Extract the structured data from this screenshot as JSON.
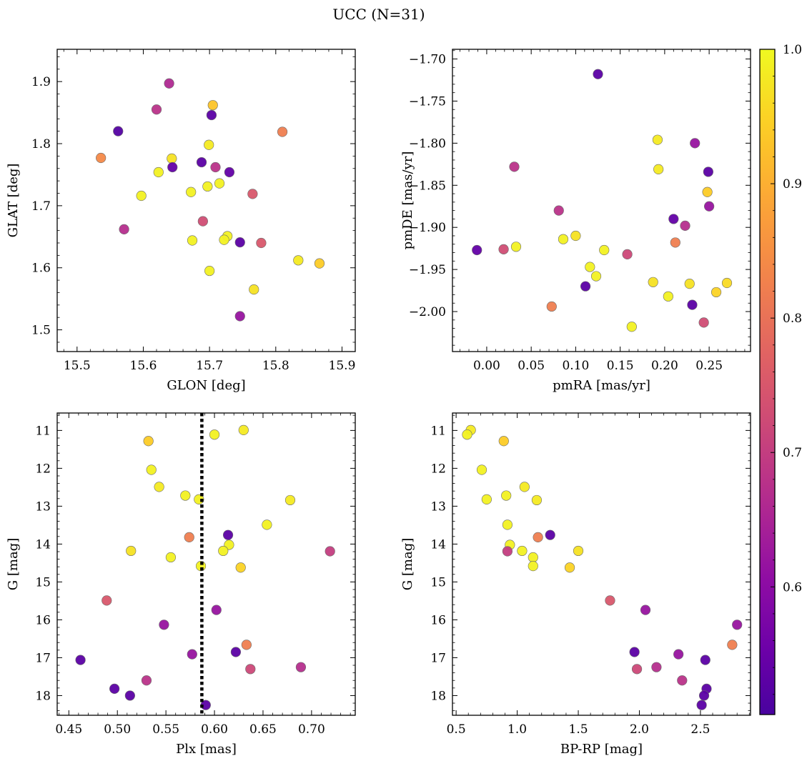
{
  "figure": {
    "title": "UCC (N=31)"
  },
  "colorbar": {
    "ticks": [
      0.6,
      0.7,
      0.8,
      0.9,
      1.0
    ],
    "tick_labels": [
      "0.6",
      "0.7",
      "0.8",
      "0.9",
      "1.0"
    ],
    "range": [
      0.505,
      1.0
    ]
  },
  "chart_data": [
    {
      "type": "scatter",
      "xlabel": "GLON [deg]",
      "ylabel": "GLAT [deg]",
      "xlim": [
        15.47,
        15.92
      ],
      "ylim": [
        1.465,
        1.952
      ],
      "xticks": [
        15.5,
        15.6,
        15.7,
        15.8,
        15.9
      ],
      "xtick_labels": [
        "15.5",
        "15.6",
        "15.7",
        "15.8",
        "15.9"
      ],
      "yticks": [
        1.5,
        1.6,
        1.7,
        1.8,
        1.9
      ],
      "ytick_labels": [
        "1.5",
        "1.6",
        "1.7",
        "1.8",
        "1.9"
      ],
      "y_inverted": false,
      "points": [
        {
          "x": 15.639,
          "y": 1.897,
          "c": 0.66
        },
        {
          "x": 15.705,
          "y": 1.862,
          "c": 0.93
        },
        {
          "x": 15.62,
          "y": 1.855,
          "c": 0.68
        },
        {
          "x": 15.703,
          "y": 1.846,
          "c": 0.53
        },
        {
          "x": 15.562,
          "y": 1.82,
          "c": 0.52
        },
        {
          "x": 15.81,
          "y": 1.819,
          "c": 0.82
        },
        {
          "x": 15.699,
          "y": 1.798,
          "c": 0.98
        },
        {
          "x": 15.536,
          "y": 1.777,
          "c": 0.84
        },
        {
          "x": 15.643,
          "y": 1.776,
          "c": 0.97
        },
        {
          "x": 15.688,
          "y": 1.77,
          "c": 0.53
        },
        {
          "x": 15.709,
          "y": 1.762,
          "c": 0.68
        },
        {
          "x": 15.644,
          "y": 1.762,
          "c": 0.54
        },
        {
          "x": 15.623,
          "y": 1.754,
          "c": 0.99
        },
        {
          "x": 15.73,
          "y": 1.754,
          "c": 0.54
        },
        {
          "x": 15.715,
          "y": 1.736,
          "c": 0.99
        },
        {
          "x": 15.697,
          "y": 1.731,
          "c": 0.99
        },
        {
          "x": 15.672,
          "y": 1.722,
          "c": 0.99
        },
        {
          "x": 15.765,
          "y": 1.719,
          "c": 0.75
        },
        {
          "x": 15.597,
          "y": 1.716,
          "c": 0.99
        },
        {
          "x": 15.69,
          "y": 1.675,
          "c": 0.73
        },
        {
          "x": 15.571,
          "y": 1.662,
          "c": 0.67
        },
        {
          "x": 15.727,
          "y": 1.651,
          "c": 0.99
        },
        {
          "x": 15.722,
          "y": 1.645,
          "c": 0.99
        },
        {
          "x": 15.674,
          "y": 1.644,
          "c": 0.99
        },
        {
          "x": 15.746,
          "y": 1.641,
          "c": 0.53
        },
        {
          "x": 15.778,
          "y": 1.64,
          "c": 0.75
        },
        {
          "x": 15.834,
          "y": 1.612,
          "c": 0.98
        },
        {
          "x": 15.866,
          "y": 1.607,
          "c": 0.94
        },
        {
          "x": 15.7,
          "y": 1.595,
          "c": 0.99
        },
        {
          "x": 15.767,
          "y": 1.565,
          "c": 0.97
        },
        {
          "x": 15.746,
          "y": 1.522,
          "c": 0.62
        }
      ]
    },
    {
      "type": "scatter",
      "xlabel": "pmRA [mas/yr]",
      "ylabel": "pmDE [mas/yr]",
      "xlim": [
        -0.0385,
        0.2965
      ],
      "ylim": [
        -2.0475,
        -1.6885
      ],
      "xticks": [
        0.0,
        0.05,
        0.1,
        0.15,
        0.2,
        0.25
      ],
      "xtick_labels": [
        "0.00",
        "0.05",
        "0.10",
        "0.15",
        "0.20",
        "0.25"
      ],
      "yticks": [
        -2.0,
        -1.95,
        -1.9,
        -1.85,
        -1.8,
        -1.75,
        -1.7
      ],
      "ytick_labels": [
        "−2.00",
        "−1.95",
        "−1.90",
        "−1.85",
        "−1.80",
        "−1.75",
        "−1.70"
      ],
      "y_inverted": false,
      "points": [
        {
          "x": 0.125,
          "y": -1.718,
          "c": 0.53
        },
        {
          "x": 0.192,
          "y": -1.796,
          "c": 0.98
        },
        {
          "x": 0.234,
          "y": -1.8,
          "c": 0.62
        },
        {
          "x": 0.031,
          "y": -1.828,
          "c": 0.68
        },
        {
          "x": 0.193,
          "y": -1.831,
          "c": 0.98
        },
        {
          "x": 0.249,
          "y": -1.834,
          "c": 0.53
        },
        {
          "x": 0.248,
          "y": -1.858,
          "c": 0.94
        },
        {
          "x": 0.25,
          "y": -1.875,
          "c": 0.62
        },
        {
          "x": 0.081,
          "y": -1.88,
          "c": 0.68
        },
        {
          "x": 0.21,
          "y": -1.89,
          "c": 0.54
        },
        {
          "x": 0.223,
          "y": -1.898,
          "c": 0.67
        },
        {
          "x": 0.1,
          "y": -1.91,
          "c": 0.97
        },
        {
          "x": 0.086,
          "y": -1.914,
          "c": 0.99
        },
        {
          "x": 0.212,
          "y": -1.918,
          "c": 0.82
        },
        {
          "x": 0.033,
          "y": -1.923,
          "c": 0.99
        },
        {
          "x": -0.011,
          "y": -1.927,
          "c": 0.54
        },
        {
          "x": 0.019,
          "y": -1.926,
          "c": 0.73
        },
        {
          "x": 0.132,
          "y": -1.927,
          "c": 0.99
        },
        {
          "x": 0.158,
          "y": -1.932,
          "c": 0.72
        },
        {
          "x": 0.116,
          "y": -1.947,
          "c": 0.99
        },
        {
          "x": 0.123,
          "y": -1.958,
          "c": 0.99
        },
        {
          "x": 0.187,
          "y": -1.965,
          "c": 0.97
        },
        {
          "x": 0.228,
          "y": -1.967,
          "c": 0.97
        },
        {
          "x": 0.27,
          "y": -1.966,
          "c": 0.96
        },
        {
          "x": 0.111,
          "y": -1.97,
          "c": 0.53
        },
        {
          "x": 0.258,
          "y": -1.977,
          "c": 0.95
        },
        {
          "x": 0.204,
          "y": -1.982,
          "c": 0.99
        },
        {
          "x": 0.231,
          "y": -1.992,
          "c": 0.53
        },
        {
          "x": 0.073,
          "y": -1.994,
          "c": 0.82
        },
        {
          "x": 0.244,
          "y": -2.013,
          "c": 0.73
        },
        {
          "x": 0.163,
          "y": -2.018,
          "c": 0.99
        }
      ]
    },
    {
      "type": "scatter",
      "xlabel": "Plx [mas]",
      "ylabel": "G [mag]",
      "xlim": [
        0.438,
        0.745
      ],
      "ylim": [
        18.52,
        10.54
      ],
      "xticks": [
        0.45,
        0.5,
        0.55,
        0.6,
        0.65,
        0.7
      ],
      "xtick_labels": [
        "0.45",
        "0.50",
        "0.55",
        "0.60",
        "0.65",
        "0.70"
      ],
      "yticks": [
        11,
        12,
        13,
        14,
        15,
        16,
        17,
        18
      ],
      "ytick_labels": [
        "11",
        "12",
        "13",
        "14",
        "15",
        "16",
        "17",
        "18"
      ],
      "y_inverted": true,
      "vline": {
        "x": 0.587,
        "style": "dotted"
      },
      "points": [
        {
          "x": 0.63,
          "y": 10.99,
          "c": 0.98
        },
        {
          "x": 0.6,
          "y": 11.11,
          "c": 0.99
        },
        {
          "x": 0.532,
          "y": 11.28,
          "c": 0.94
        },
        {
          "x": 0.535,
          "y": 12.04,
          "c": 0.99
        },
        {
          "x": 0.543,
          "y": 12.49,
          "c": 0.98
        },
        {
          "x": 0.57,
          "y": 12.72,
          "c": 0.99
        },
        {
          "x": 0.584,
          "y": 12.82,
          "c": 0.99
        },
        {
          "x": 0.678,
          "y": 12.84,
          "c": 0.98
        },
        {
          "x": 0.654,
          "y": 13.49,
          "c": 0.99
        },
        {
          "x": 0.614,
          "y": 13.76,
          "c": 0.53
        },
        {
          "x": 0.574,
          "y": 13.82,
          "c": 0.82
        },
        {
          "x": 0.615,
          "y": 14.02,
          "c": 0.99
        },
        {
          "x": 0.609,
          "y": 14.18,
          "c": 0.99
        },
        {
          "x": 0.514,
          "y": 14.18,
          "c": 0.97
        },
        {
          "x": 0.719,
          "y": 14.19,
          "c": 0.7
        },
        {
          "x": 0.555,
          "y": 14.35,
          "c": 0.99
        },
        {
          "x": 0.586,
          "y": 14.58,
          "c": 0.99
        },
        {
          "x": 0.627,
          "y": 14.62,
          "c": 0.95
        },
        {
          "x": 0.489,
          "y": 15.49,
          "c": 0.75
        },
        {
          "x": 0.602,
          "y": 15.74,
          "c": 0.62
        },
        {
          "x": 0.548,
          "y": 16.13,
          "c": 0.62
        },
        {
          "x": 0.633,
          "y": 16.66,
          "c": 0.82
        },
        {
          "x": 0.577,
          "y": 16.91,
          "c": 0.62
        },
        {
          "x": 0.622,
          "y": 16.85,
          "c": 0.53
        },
        {
          "x": 0.462,
          "y": 17.06,
          "c": 0.53
        },
        {
          "x": 0.689,
          "y": 17.25,
          "c": 0.67
        },
        {
          "x": 0.637,
          "y": 17.3,
          "c": 0.72
        },
        {
          "x": 0.53,
          "y": 17.6,
          "c": 0.68
        },
        {
          "x": 0.497,
          "y": 17.82,
          "c": 0.53
        },
        {
          "x": 0.513,
          "y": 18.0,
          "c": 0.53
        },
        {
          "x": 0.591,
          "y": 18.25,
          "c": 0.53
        }
      ]
    },
    {
      "type": "scatter",
      "xlabel": "BP-RP [mag]",
      "ylabel": "G [mag]",
      "xlim": [
        0.47,
        2.91
      ],
      "ylim": [
        18.52,
        10.54
      ],
      "xticks": [
        0.5,
        1.0,
        1.5,
        2.0,
        2.5
      ],
      "xtick_labels": [
        "0.5",
        "1.0",
        "1.5",
        "2.0",
        "2.5"
      ],
      "yticks": [
        11,
        12,
        13,
        14,
        15,
        16,
        17,
        18
      ],
      "ytick_labels": [
        "11",
        "12",
        "13",
        "14",
        "15",
        "16",
        "17",
        "18"
      ],
      "y_inverted": true,
      "points": [
        {
          "x": 0.62,
          "y": 10.99,
          "c": 0.98
        },
        {
          "x": 0.59,
          "y": 11.11,
          "c": 0.99
        },
        {
          "x": 0.89,
          "y": 11.28,
          "c": 0.94
        },
        {
          "x": 0.71,
          "y": 12.04,
          "c": 0.99
        },
        {
          "x": 1.06,
          "y": 12.49,
          "c": 0.98
        },
        {
          "x": 0.91,
          "y": 12.72,
          "c": 0.99
        },
        {
          "x": 0.75,
          "y": 12.82,
          "c": 0.99
        },
        {
          "x": 1.16,
          "y": 12.84,
          "c": 0.98
        },
        {
          "x": 0.92,
          "y": 13.49,
          "c": 0.99
        },
        {
          "x": 1.27,
          "y": 13.76,
          "c": 0.53
        },
        {
          "x": 1.17,
          "y": 13.82,
          "c": 0.82
        },
        {
          "x": 0.94,
          "y": 14.02,
          "c": 0.99
        },
        {
          "x": 1.04,
          "y": 14.18,
          "c": 0.99
        },
        {
          "x": 1.5,
          "y": 14.18,
          "c": 0.97
        },
        {
          "x": 0.92,
          "y": 14.19,
          "c": 0.7
        },
        {
          "x": 1.13,
          "y": 14.35,
          "c": 0.99
        },
        {
          "x": 1.13,
          "y": 14.58,
          "c": 0.99
        },
        {
          "x": 1.43,
          "y": 14.62,
          "c": 0.95
        },
        {
          "x": 1.76,
          "y": 15.49,
          "c": 0.75
        },
        {
          "x": 2.05,
          "y": 15.74,
          "c": 0.62
        },
        {
          "x": 2.8,
          "y": 16.13,
          "c": 0.62
        },
        {
          "x": 2.76,
          "y": 16.66,
          "c": 0.82
        },
        {
          "x": 2.32,
          "y": 16.91,
          "c": 0.62
        },
        {
          "x": 1.96,
          "y": 16.85,
          "c": 0.53
        },
        {
          "x": 2.54,
          "y": 17.06,
          "c": 0.53
        },
        {
          "x": 2.14,
          "y": 17.25,
          "c": 0.67
        },
        {
          "x": 1.98,
          "y": 17.3,
          "c": 0.72
        },
        {
          "x": 2.35,
          "y": 17.6,
          "c": 0.68
        },
        {
          "x": 2.55,
          "y": 17.82,
          "c": 0.53
        },
        {
          "x": 2.53,
          "y": 18.0,
          "c": 0.53
        },
        {
          "x": 2.51,
          "y": 18.25,
          "c": 0.53
        }
      ]
    }
  ]
}
